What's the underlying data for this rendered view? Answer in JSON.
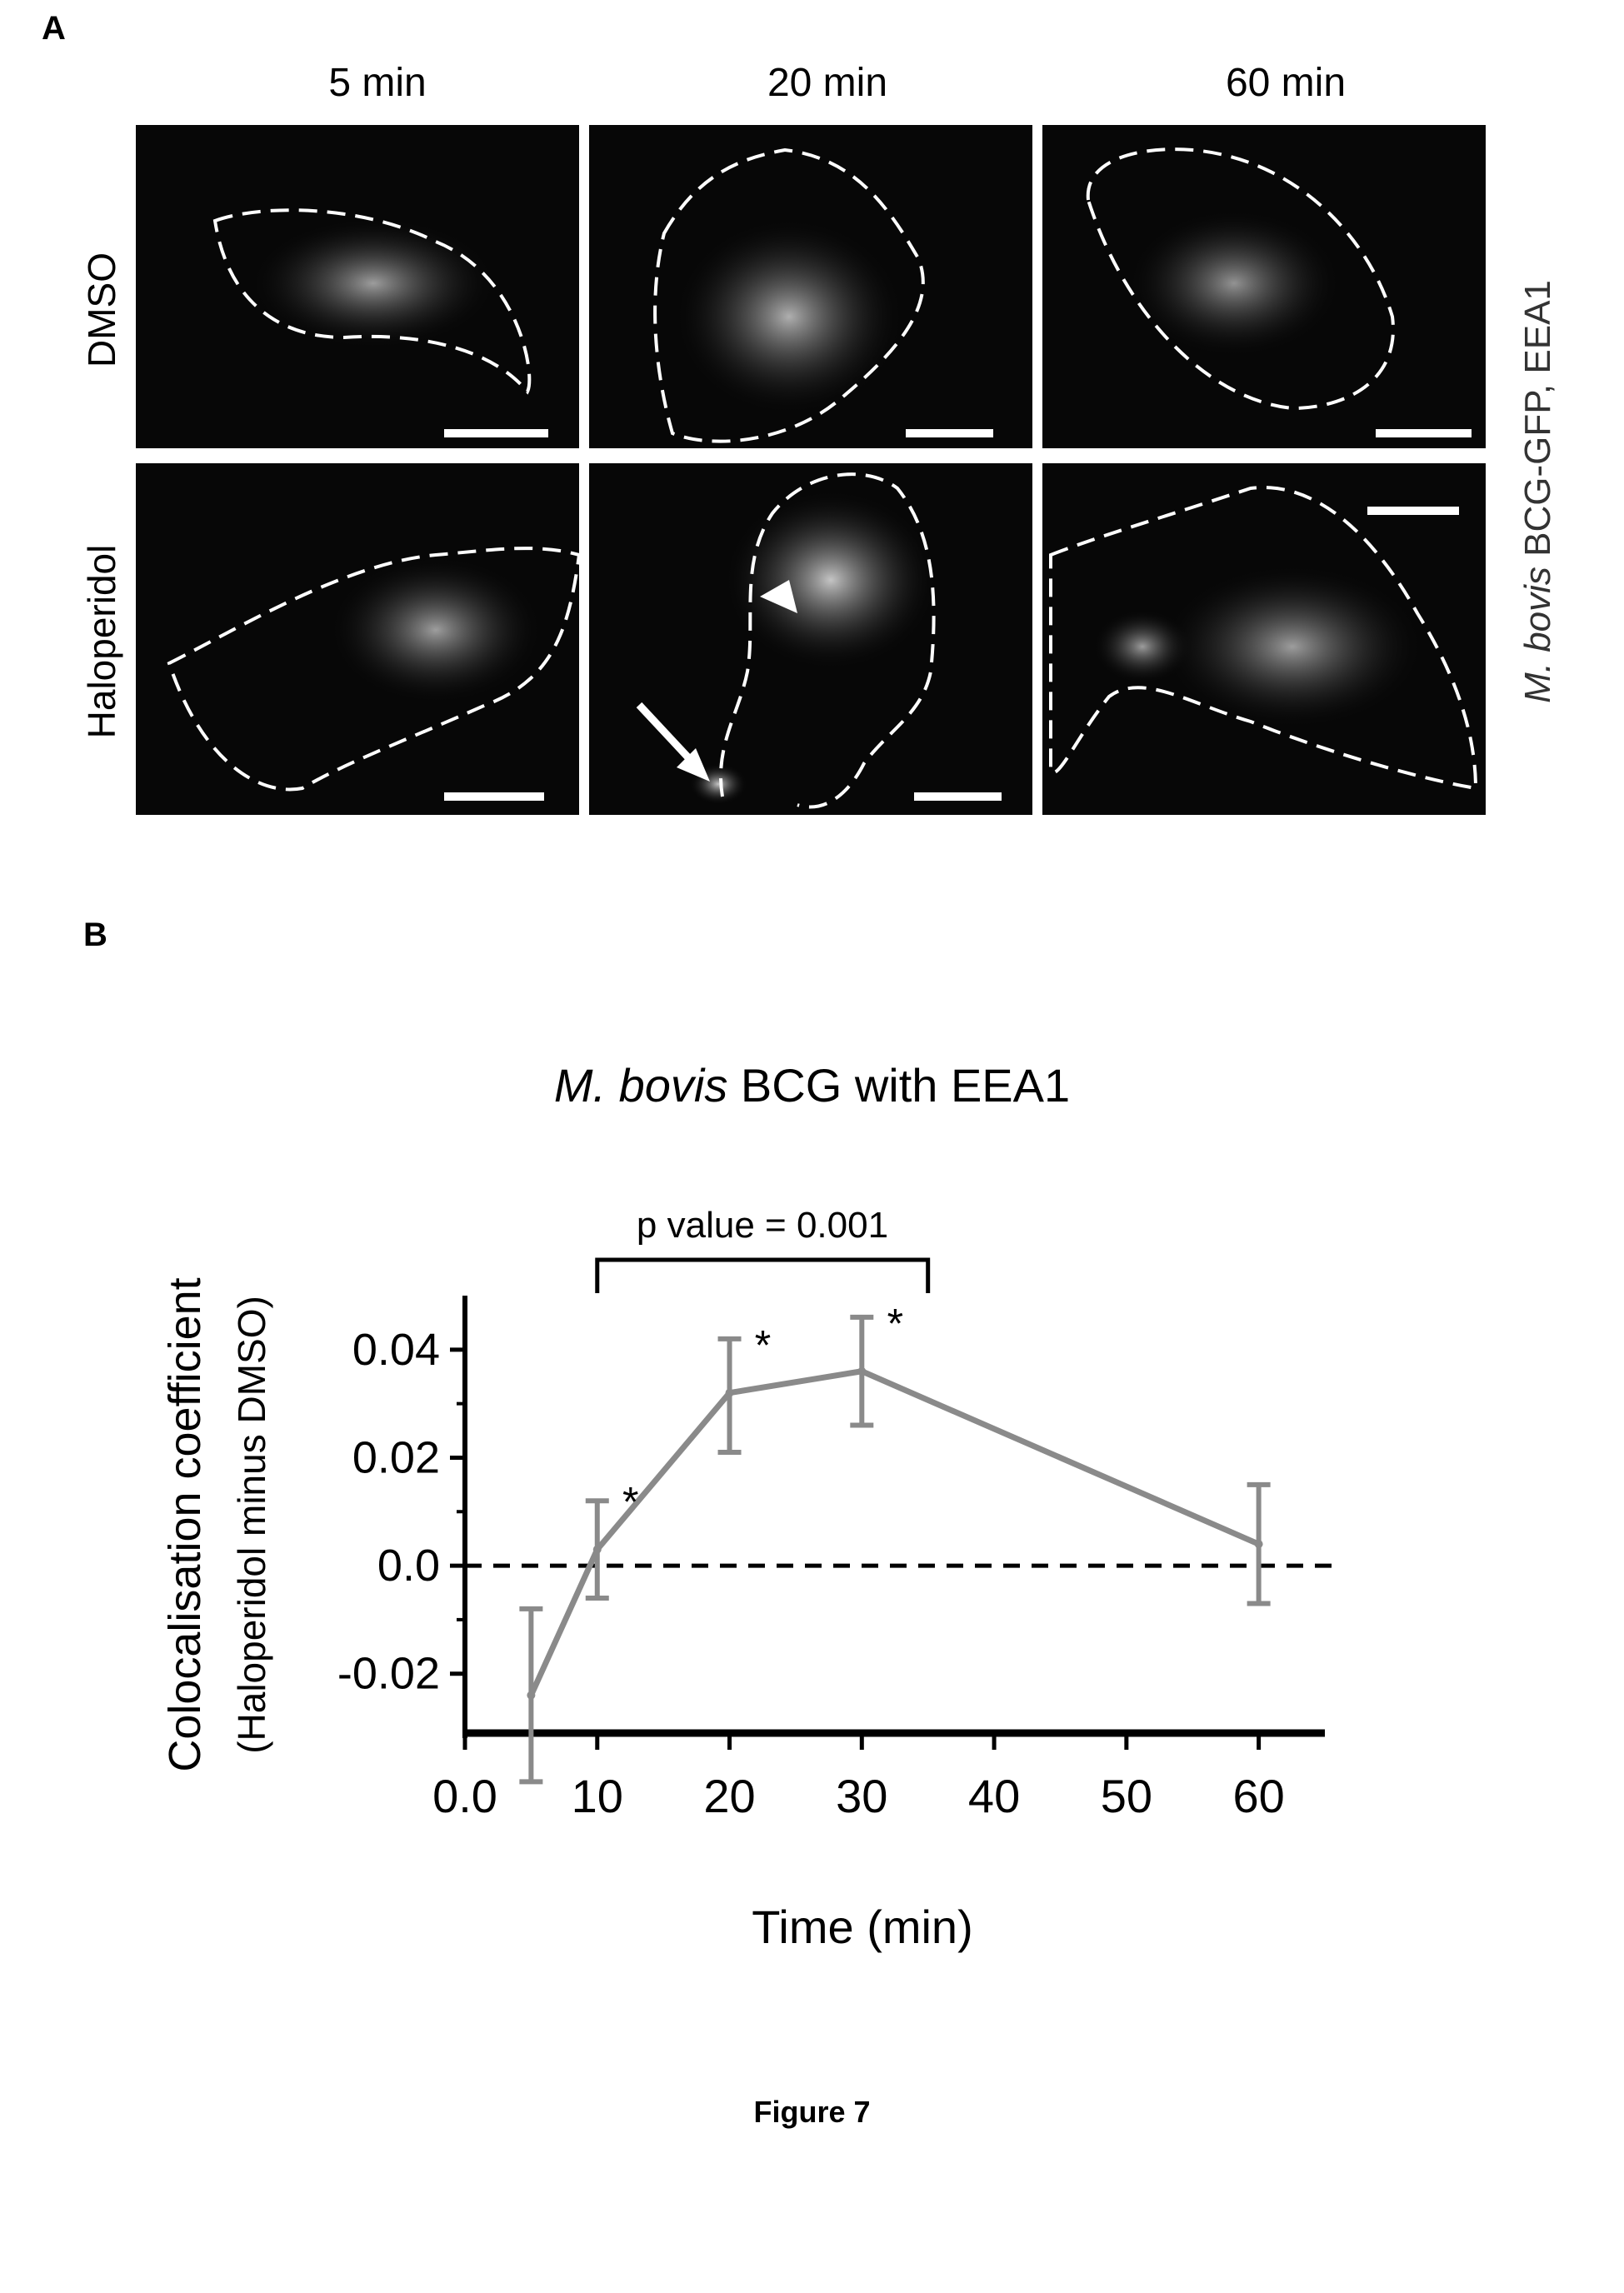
{
  "panel_a": {
    "letter": "A",
    "columns": [
      "5 min",
      "20 min",
      "60 min"
    ],
    "rows": [
      "DMSO",
      "Haloperidol"
    ],
    "side_label": {
      "italic": "M. bovis",
      "rest": " BCG-GFP, EEA1"
    }
  },
  "panel_b": {
    "letter": "B",
    "title_italic": "M. bovis",
    "title_rest": " BCG with EEA1"
  },
  "chart_data": {
    "type": "line",
    "title": "M. bovis BCG with EEA1",
    "xlabel": "Time (min)",
    "ylabel": "Colocalisation coefficient",
    "ylabel2": "(Haloperidol minus DMSO)",
    "xlim": [
      0,
      65
    ],
    "ylim": [
      -0.031,
      0.05
    ],
    "x_ticks": [
      0,
      10,
      20,
      30,
      40,
      50,
      60
    ],
    "x_tick_labels": [
      "0.0",
      "10",
      "20",
      "30",
      "40",
      "50",
      "60"
    ],
    "y_ticks": [
      -0.02,
      0.0,
      0.02,
      0.04
    ],
    "y_tick_labels": [
      "-0.02",
      "0.0",
      "0.02",
      "0.04"
    ],
    "series": [
      {
        "x": [
          5,
          10,
          20,
          30,
          60
        ],
        "y": [
          -0.024,
          0.003,
          0.032,
          0.036,
          0.004
        ],
        "err_low": [
          -0.04,
          -0.006,
          0.021,
          0.026,
          -0.007
        ],
        "err_high": [
          -0.008,
          0.012,
          0.042,
          0.046,
          0.015
        ],
        "significant": [
          false,
          true,
          true,
          true,
          false
        ],
        "color": "#8a8a8a"
      }
    ],
    "reference_line": {
      "y": 0.0,
      "style": "dashed"
    },
    "significance_bracket": {
      "x_start": 10,
      "x_end": 35,
      "label": "p value = 0.001"
    },
    "significance_marker": "*"
  },
  "caption": "Figure 7"
}
